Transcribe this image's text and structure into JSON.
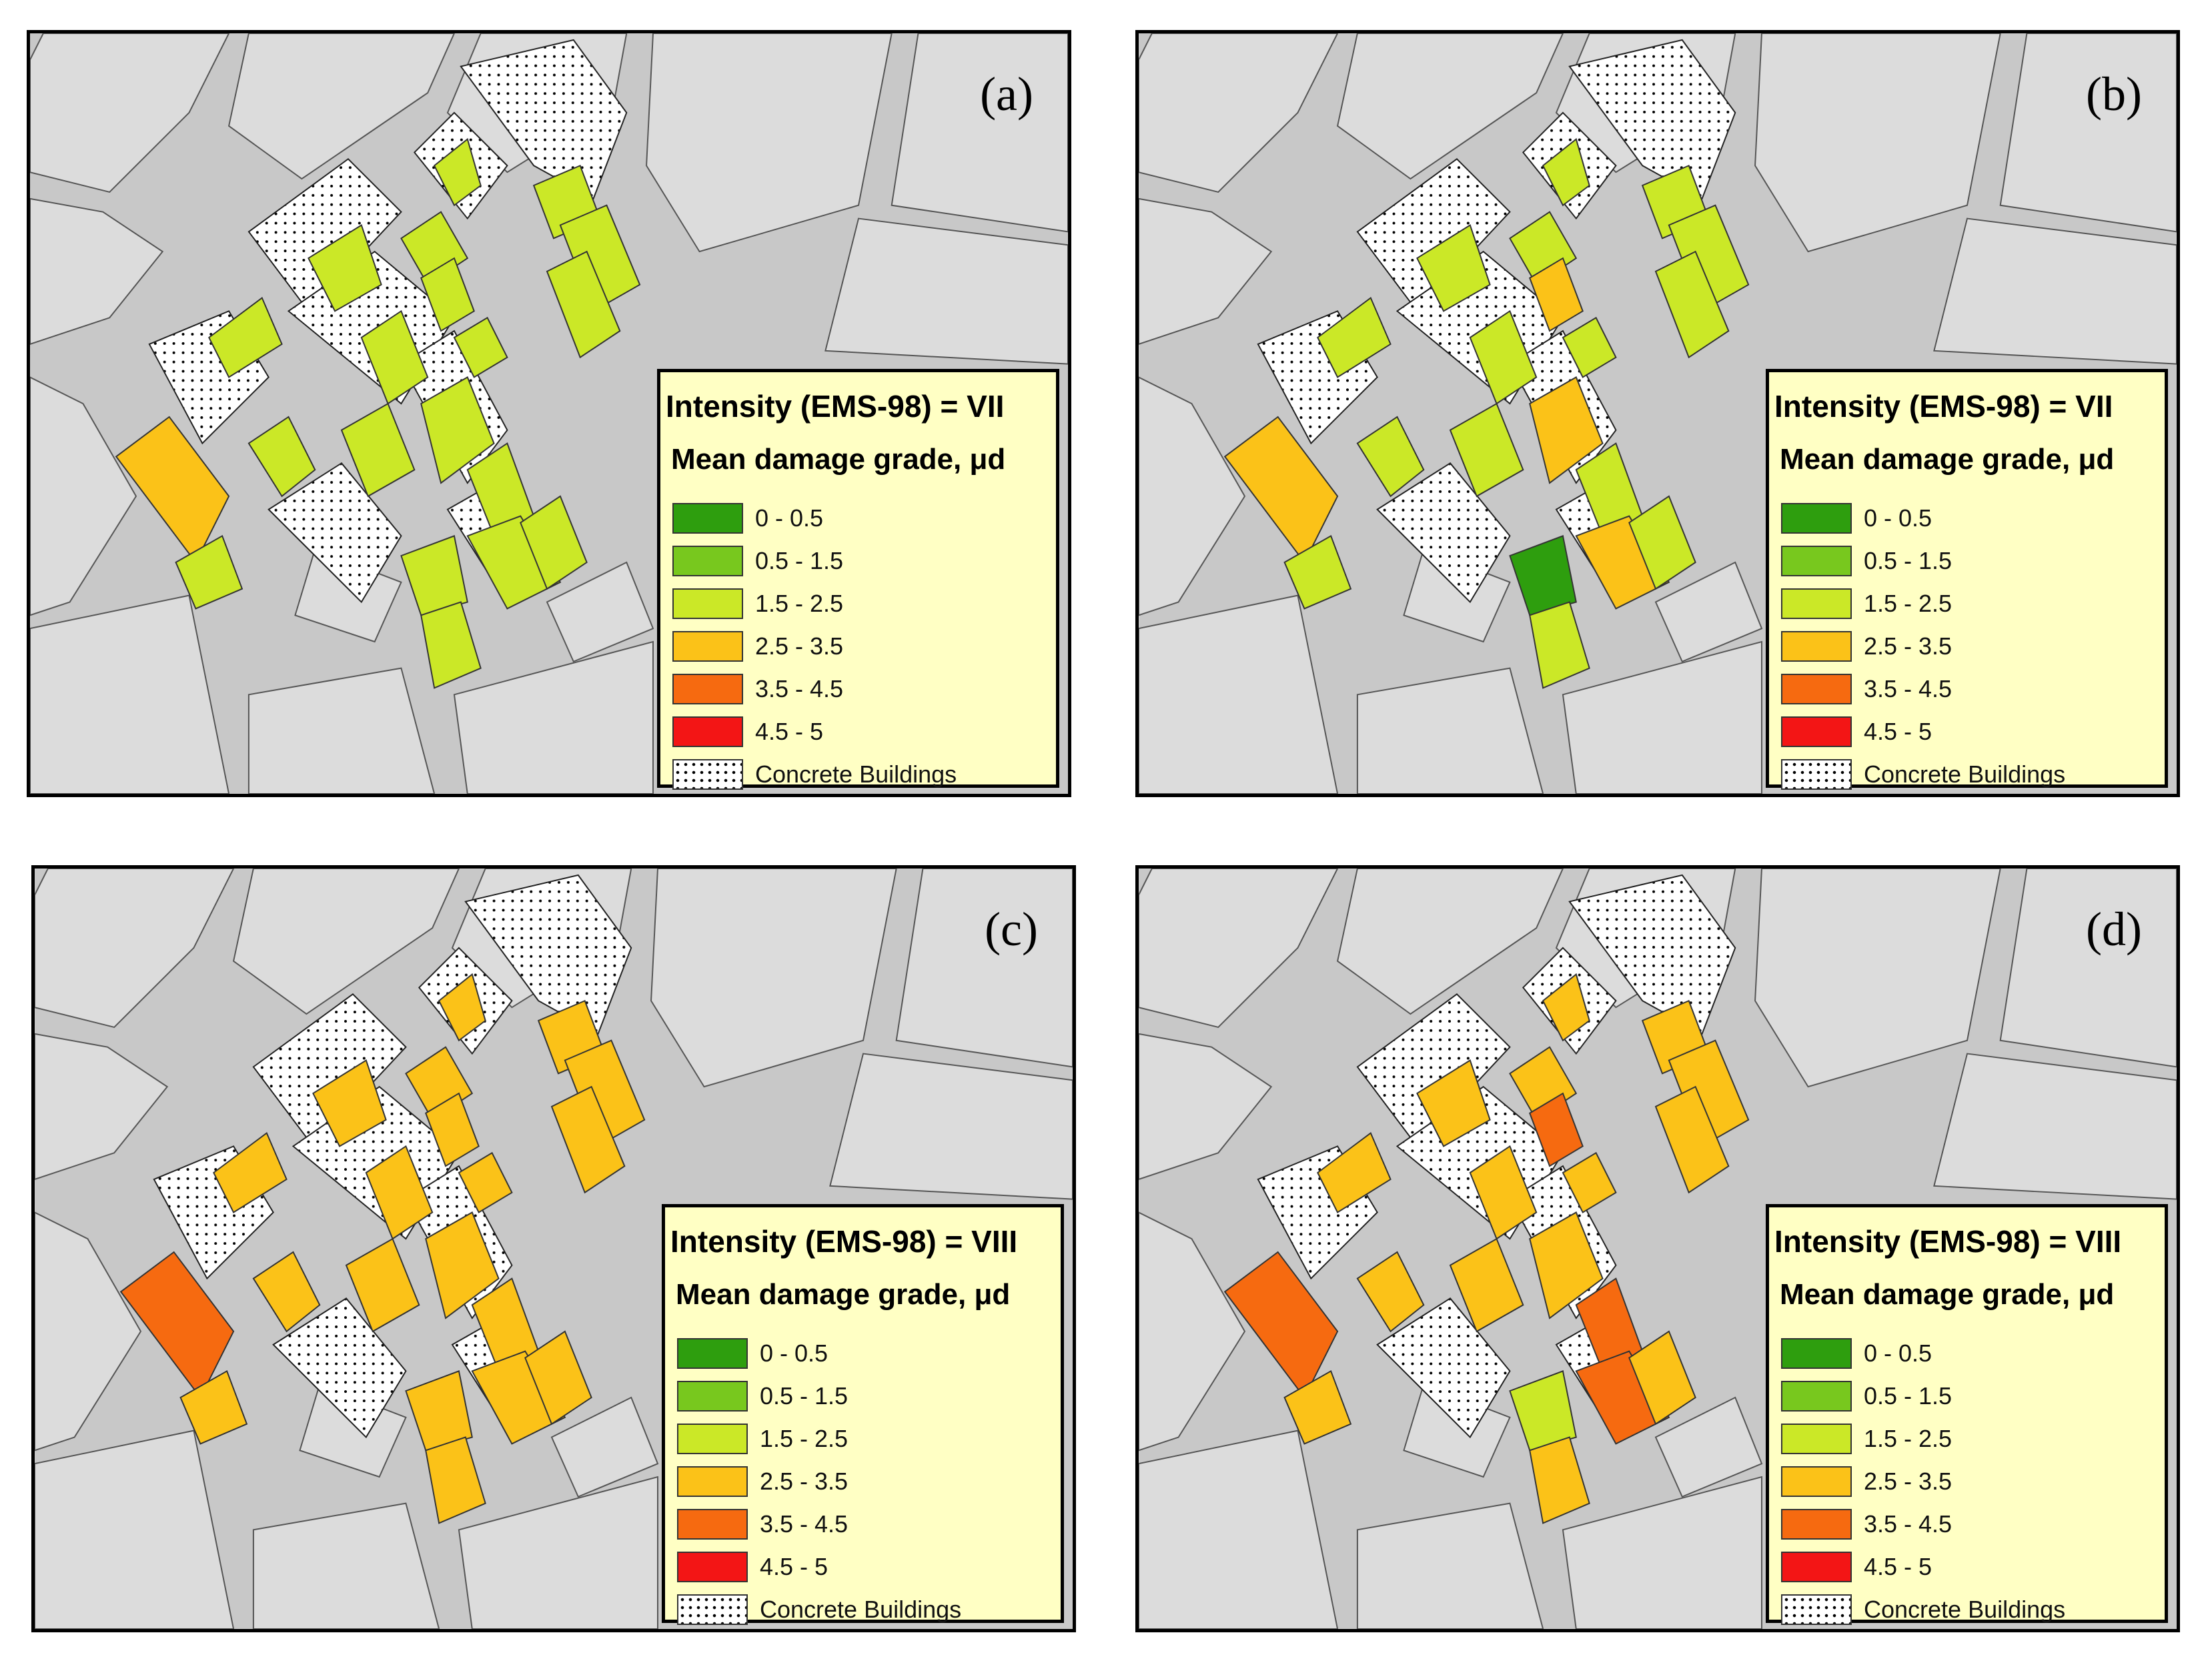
{
  "panels": [
    {
      "label": "(a)",
      "intensity": "Intensity (EMS-98) = VII",
      "key": "a"
    },
    {
      "label": "(b)",
      "intensity": "Intensity (EMS-98) = VII",
      "key": "b"
    },
    {
      "label": "(c)",
      "intensity": "Intensity (EMS-98) = VIII",
      "key": "c"
    },
    {
      "label": "(d)",
      "intensity": "Intensity (EMS-98) = VIII",
      "key": "d"
    }
  ],
  "legend": {
    "subtitle": "Mean damage grade, μd",
    "classes": [
      {
        "label": "0 - 0.5",
        "color": "#2e9e0e"
      },
      {
        "label": "0.5 - 1.5",
        "color": "#78c81e"
      },
      {
        "label": "1.5 - 2.5",
        "color": "#cbe827"
      },
      {
        "label": "2.5 - 3.5",
        "color": "#fbc218"
      },
      {
        "label": "3.5 - 4.5",
        "color": "#f66a10"
      },
      {
        "label": "4.5 - 5",
        "color": "#f31515"
      }
    ],
    "concrete_label": "Concrete Buildings"
  },
  "colors": {
    "background": "#c8c8c8",
    "block": "#dcdcdc",
    "outline": "#555555",
    "legend_bg": "#ffffc4"
  },
  "damage": {
    "a": [
      "g",
      "g",
      "g",
      "g",
      "g",
      "g",
      "g",
      "g",
      "g",
      "g",
      "o",
      "g",
      "g",
      "g",
      "g",
      "g",
      "g",
      "g",
      "g",
      "g"
    ],
    "b": [
      "g",
      "g",
      "g",
      "g",
      "g",
      "g",
      "o",
      "g",
      "g",
      "g",
      "o",
      "g",
      "g",
      "o",
      "g",
      "m",
      "g",
      "o",
      "g",
      "g"
    ],
    "c": [
      "o",
      "o",
      "o",
      "o",
      "o",
      "o",
      "o",
      "o",
      "o",
      "o",
      "r",
      "o",
      "o",
      "o",
      "o",
      "o",
      "o",
      "o",
      "o",
      "o"
    ],
    "d": [
      "o",
      "o",
      "o",
      "o",
      "o",
      "o",
      "r",
      "o",
      "o",
      "o",
      "r",
      "o",
      "o",
      "o",
      "r",
      "g",
      "o",
      "r",
      "o",
      "o"
    ]
  }
}
